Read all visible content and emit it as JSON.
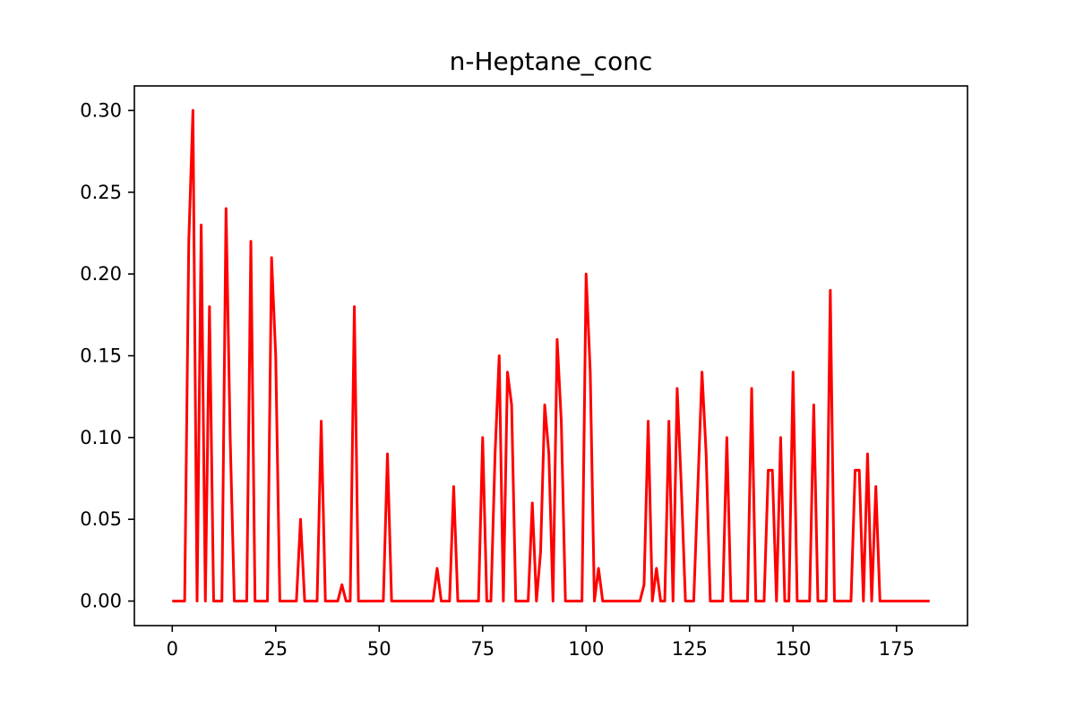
{
  "chart_data": {
    "type": "line",
    "title": "n-Heptane_conc",
    "xlabel": "",
    "ylabel": "",
    "xlim": [
      -9.15,
      192.15
    ],
    "ylim": [
      -0.015,
      0.315
    ],
    "x_ticks": [
      0,
      25,
      50,
      75,
      100,
      125,
      150,
      175
    ],
    "x_tick_labels": [
      "0",
      "25",
      "50",
      "75",
      "100",
      "125",
      "150",
      "175"
    ],
    "y_ticks": [
      0.0,
      0.05,
      0.1,
      0.15,
      0.2,
      0.25,
      0.3
    ],
    "y_tick_labels": [
      "0.00",
      "0.05",
      "0.10",
      "0.15",
      "0.20",
      "0.25",
      "0.30"
    ],
    "grid": false,
    "legend": "none",
    "series": [
      {
        "color": "#ff0000",
        "x": [
          0,
          1,
          2,
          3,
          4,
          5,
          6,
          7,
          8,
          9,
          10,
          11,
          12,
          13,
          14,
          15,
          16,
          17,
          18,
          19,
          20,
          21,
          22,
          23,
          24,
          25,
          26,
          27,
          28,
          29,
          30,
          31,
          32,
          33,
          34,
          35,
          36,
          37,
          38,
          39,
          40,
          41,
          42,
          43,
          44,
          45,
          46,
          47,
          48,
          49,
          50,
          51,
          52,
          53,
          54,
          55,
          56,
          57,
          58,
          59,
          60,
          61,
          62,
          63,
          64,
          65,
          66,
          67,
          68,
          69,
          70,
          71,
          72,
          73,
          74,
          75,
          76,
          77,
          78,
          79,
          80,
          81,
          82,
          83,
          84,
          85,
          86,
          87,
          88,
          89,
          90,
          91,
          92,
          93,
          94,
          95,
          96,
          97,
          98,
          99,
          100,
          101,
          102,
          103,
          104,
          105,
          106,
          107,
          108,
          109,
          110,
          111,
          112,
          113,
          114,
          115,
          116,
          117,
          118,
          119,
          120,
          121,
          122,
          123,
          124,
          125,
          126,
          127,
          128,
          129,
          130,
          131,
          132,
          133,
          134,
          135,
          136,
          137,
          138,
          139,
          140,
          141,
          142,
          143,
          144,
          145,
          146,
          147,
          148,
          149,
          150,
          151,
          152,
          153,
          154,
          155,
          156,
          157,
          158,
          159,
          160,
          161,
          162,
          163,
          164,
          165,
          166,
          167,
          168,
          169,
          170,
          171,
          172,
          173,
          174,
          175,
          176,
          177,
          178,
          179,
          180,
          181,
          182,
          183
        ],
        "y": [
          0,
          0,
          0,
          0,
          0.22,
          0.3,
          0,
          0.23,
          0,
          0.18,
          0,
          0,
          0,
          0.24,
          0.1,
          0,
          0,
          0,
          0,
          0.22,
          0,
          0,
          0,
          0,
          0.21,
          0.15,
          0,
          0,
          0,
          0,
          0,
          0.05,
          0,
          0,
          0,
          0,
          0.11,
          0,
          0,
          0,
          0,
          0.01,
          0,
          0,
          0.18,
          0,
          0,
          0,
          0,
          0,
          0,
          0,
          0.09,
          0,
          0,
          0,
          0,
          0,
          0,
          0,
          0,
          0,
          0,
          0,
          0.02,
          0,
          0,
          0,
          0.07,
          0,
          0,
          0,
          0,
          0,
          0,
          0.1,
          0,
          0,
          0.09,
          0.15,
          0,
          0.14,
          0.12,
          0,
          0,
          0,
          0,
          0.06,
          0,
          0.03,
          0.12,
          0.09,
          0,
          0.16,
          0.11,
          0,
          0,
          0,
          0,
          0,
          0.2,
          0.14,
          0,
          0.02,
          0,
          0,
          0,
          0,
          0,
          0,
          0,
          0,
          0,
          0,
          0.01,
          0.11,
          0,
          0.02,
          0,
          0,
          0.11,
          0,
          0.13,
          0.07,
          0,
          0,
          0,
          0.07,
          0.14,
          0.09,
          0,
          0,
          0,
          0,
          0.1,
          0,
          0,
          0,
          0,
          0,
          0.13,
          0,
          0,
          0,
          0.08,
          0.08,
          0,
          0.1,
          0,
          0,
          0.14,
          0,
          0,
          0,
          0,
          0.12,
          0,
          0,
          0,
          0.19,
          0,
          0,
          0,
          0,
          0,
          0.08,
          0.08,
          0,
          0.09,
          0,
          0.07,
          0,
          0,
          0,
          0,
          0,
          0,
          0,
          0,
          0,
          0,
          0,
          0,
          0
        ]
      }
    ]
  }
}
